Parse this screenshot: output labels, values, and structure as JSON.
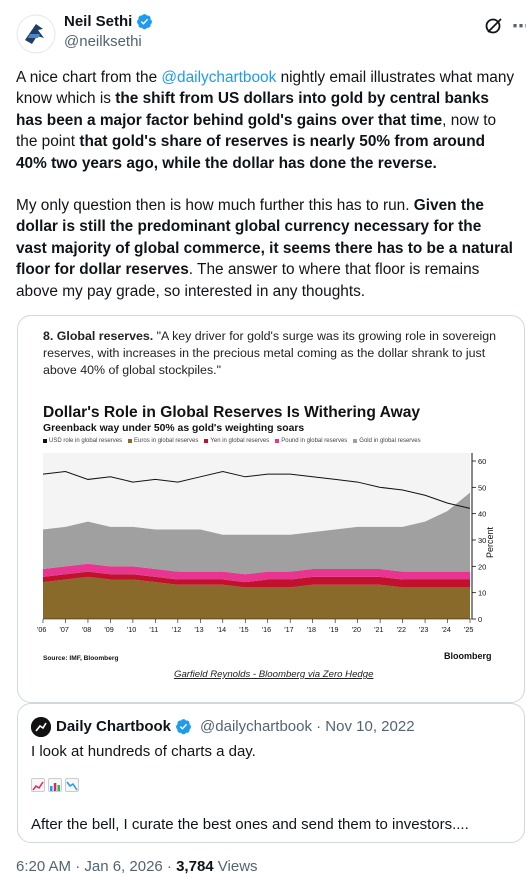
{
  "author": {
    "name": "Neil Sethi",
    "handle": "@neilksethi"
  },
  "tweet": {
    "p1": [
      {
        "t": "A nice chart from the ",
        "s": "normal"
      },
      {
        "t": "@dailychartbook",
        "s": "mention"
      },
      {
        "t": " nightly email illustrates what many know which is ",
        "s": "normal"
      },
      {
        "t": "the shift from US dollars into gold by central banks has been a major factor behind gold's gains over that time",
        "s": "bold"
      },
      {
        "t": ", now to the point ",
        "s": "normal"
      },
      {
        "t": "that gold's share of reserves is nearly 50% from around 40% two years ago, while the dollar has done the reverse.",
        "s": "bold"
      }
    ],
    "p2": [
      {
        "t": "My only question then is how much further this has to run.  ",
        "s": "normal"
      },
      {
        "t": "Given the dollar is still the predominant global currency necessary for the vast majority of global commerce, it seems there has to be a natural floor for dollar reserves",
        "s": "bold"
      },
      {
        "t": ".  The answer to where that floor is remains above my pay grade, so interested in any thoughts.",
        "s": "normal"
      }
    ]
  },
  "media": {
    "caption_bold": "8. Global reserves.",
    "caption_rest": " \"A key driver for gold's surge was its growing role in sovereign reserves, with increases in the precious metal coming as the dollar shrank to just above 40% of global stockpiles.\"",
    "source": "Source: IMF, Bloomberg",
    "brand": "Bloomberg",
    "credit": "Garfield Reynolds - Bloomberg via Zero Hedge"
  },
  "chart_data": {
    "type": "area",
    "title": "Dollar's Role in Global Reserves Is Withering Away",
    "subtitle": "Greenback way under 50% as gold's weighting soars",
    "ylabel": "Percent",
    "ylim": [
      0,
      60
    ],
    "yticks": [
      "60",
      "50",
      "40",
      "30",
      "20",
      "10",
      "0"
    ],
    "x": [
      "'06",
      "'07",
      "'08",
      "'09",
      "'10",
      "'11",
      "'12",
      "'13",
      "'14",
      "'15",
      "'16",
      "'17",
      "'18",
      "'19",
      "'20",
      "'21",
      "'22",
      "'23",
      "'24",
      "'25"
    ],
    "legend": [
      "USD role in global reserves",
      "Euros in global reserves",
      "Yen in global reserves",
      "Pound in global reserves",
      "Gold in global reserves"
    ],
    "colors": {
      "usd": "#111111",
      "gold": "#a0a0a0",
      "pound": "#e8358f",
      "yen": "#c0122c",
      "euro": "#8a6a2a"
    },
    "series": [
      {
        "name": "USD role in global reserves",
        "values": [
          55,
          56,
          53,
          54,
          52,
          53,
          52,
          54,
          56,
          54,
          55,
          55,
          54,
          53,
          52,
          50,
          49,
          47,
          44,
          42
        ]
      },
      {
        "name": "Euros in global reserves",
        "values": [
          14,
          15,
          16,
          15,
          15,
          14,
          13,
          13,
          13,
          12,
          12,
          12,
          13,
          13,
          13,
          13,
          12,
          12,
          12,
          12
        ]
      },
      {
        "name": "Yen in global reserves",
        "values": [
          2,
          2,
          2,
          2,
          2,
          2,
          2,
          2,
          2,
          2,
          3,
          3,
          3,
          3,
          3,
          3,
          3,
          3,
          3,
          3
        ]
      },
      {
        "name": "Pound in global reserves",
        "values": [
          3,
          3,
          3,
          3,
          3,
          3,
          3,
          3,
          3,
          3,
          3,
          3,
          3,
          3,
          3,
          3,
          3,
          3,
          3,
          3
        ]
      },
      {
        "name": "Gold in global reserves",
        "values": [
          15,
          15,
          16,
          15,
          15,
          15,
          16,
          16,
          14,
          15,
          14,
          14,
          14,
          15,
          16,
          16,
          17,
          19,
          23,
          30
        ]
      }
    ]
  },
  "quote": {
    "name": "Daily Chartbook",
    "handle": "@dailychartbook · Nov 10, 2022",
    "text": "I look at hundreds of charts a day.",
    "text2": "After the bell, I curate the best ones and send them to investors...."
  },
  "meta": {
    "time": "6:20 AM · Jan 6, 2026 · ",
    "views_count": "3,784",
    "views_label": " Views"
  }
}
